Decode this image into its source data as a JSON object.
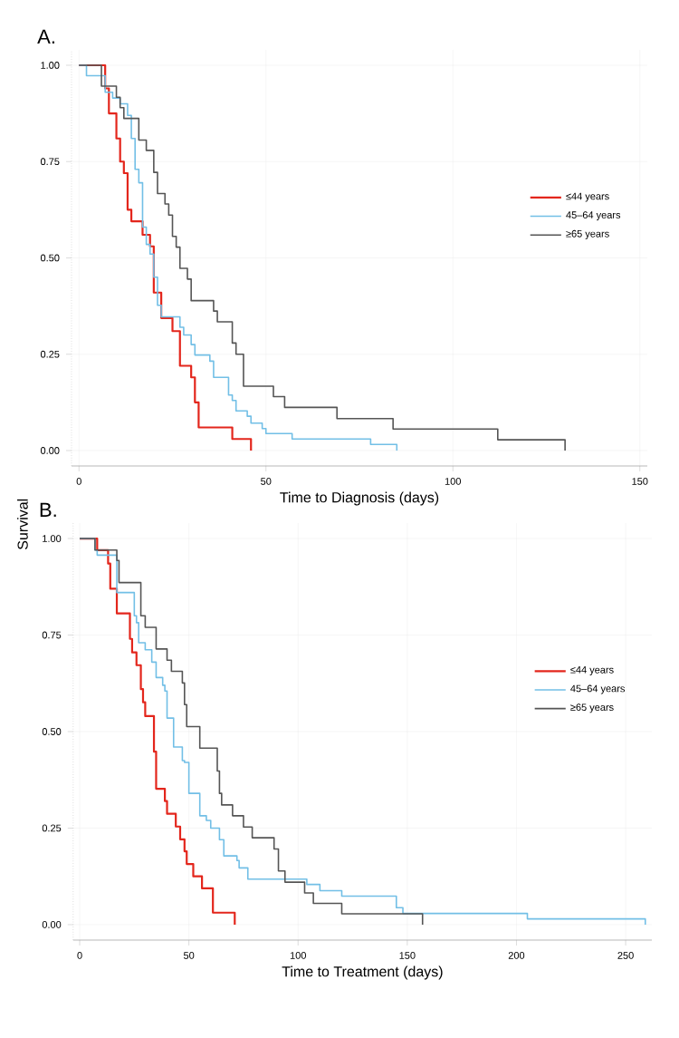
{
  "chart_data": [
    {
      "type": "step",
      "title": "A.",
      "xlabel": "Time to Diagnosis (days)",
      "ylabel": "Survival",
      "xlim": [
        -2,
        152
      ],
      "ylim": [
        -0.04,
        1.04
      ],
      "xticks": [
        0,
        50,
        100,
        150
      ],
      "yticks": [
        {
          "value": 0,
          "label": "0.00"
        },
        {
          "value": 0.25,
          "label": "0.25"
        },
        {
          "value": 0.5,
          "label": "0.50"
        },
        {
          "value": 0.75,
          "label": "0.75"
        },
        {
          "value": 1,
          "label": "1.00"
        }
      ],
      "grid": true,
      "legend": "right",
      "series": [
        {
          "name": "≤44 years",
          "color": "#e3261c",
          "x": [
            0,
            7,
            8,
            10,
            11,
            12,
            13,
            14,
            17,
            19,
            20,
            22,
            25,
            27,
            30,
            31,
            32,
            41,
            46
          ],
          "values": [
            1,
            0.94,
            0.875,
            0.81,
            0.75,
            0.72,
            0.625,
            0.595,
            0.56,
            0.53,
            0.41,
            0.344,
            0.31,
            0.22,
            0.19,
            0.125,
            0.06,
            0.03,
            0
          ]
        },
        {
          "name": "45–64 years",
          "color": "#72bfe6",
          "x": [
            0,
            2,
            7,
            9,
            11,
            13,
            14,
            15,
            16,
            17,
            18,
            19,
            20,
            21,
            22,
            27,
            28,
            30,
            31,
            35,
            36,
            40,
            41,
            42,
            45,
            46,
            49,
            50,
            57,
            78,
            85
          ],
          "values": [
            1,
            0.973,
            0.93,
            0.915,
            0.9,
            0.87,
            0.81,
            0.73,
            0.695,
            0.58,
            0.535,
            0.51,
            0.45,
            0.377,
            0.347,
            0.32,
            0.3,
            0.275,
            0.248,
            0.232,
            0.19,
            0.144,
            0.13,
            0.103,
            0.089,
            0.071,
            0.057,
            0.044,
            0.03,
            0.016,
            0
          ]
        },
        {
          "name": "≥65 years",
          "color": "#555555",
          "x": [
            0,
            6,
            10,
            11,
            12,
            16,
            18,
            20,
            21,
            23,
            24,
            25,
            26,
            27,
            29,
            30,
            36,
            37,
            41,
            42,
            44,
            52,
            55,
            69,
            84,
            112,
            130
          ],
          "values": [
            1,
            0.946,
            0.917,
            0.89,
            0.862,
            0.806,
            0.779,
            0.722,
            0.667,
            0.64,
            0.611,
            0.556,
            0.528,
            0.473,
            0.445,
            0.389,
            0.362,
            0.334,
            0.279,
            0.25,
            0.167,
            0.14,
            0.112,
            0.083,
            0.056,
            0.028,
            0
          ]
        }
      ]
    },
    {
      "type": "step",
      "title": "B.",
      "xlabel": "Time to Treatment (days)",
      "xlim": [
        -3,
        262
      ],
      "ylim": [
        -0.04,
        1.04
      ],
      "xticks": [
        0,
        50,
        100,
        150,
        200,
        250
      ],
      "yticks": [
        {
          "value": 0,
          "label": "0.00"
        },
        {
          "value": 0.25,
          "label": "0.25"
        },
        {
          "value": 0.5,
          "label": "0.50"
        },
        {
          "value": 0.75,
          "label": "0.75"
        },
        {
          "value": 1,
          "label": "1.00"
        }
      ],
      "grid": true,
      "legend": "right",
      "series": [
        {
          "name": "≤44 years",
          "color": "#e3261c",
          "x": [
            0,
            8,
            13,
            14,
            17,
            23,
            24,
            26,
            28,
            29,
            30,
            34,
            35,
            39,
            40,
            44,
            46,
            48,
            49,
            52,
            56,
            61,
            71
          ],
          "values": [
            1,
            0.97,
            0.935,
            0.87,
            0.806,
            0.74,
            0.705,
            0.672,
            0.61,
            0.576,
            0.54,
            0.448,
            0.352,
            0.32,
            0.287,
            0.254,
            0.221,
            0.19,
            0.157,
            0.125,
            0.094,
            0.031,
            0
          ]
        },
        {
          "name": "45–64 years",
          "color": "#72bfe6",
          "x": [
            0,
            7,
            8,
            17,
            25,
            26,
            27,
            30,
            33,
            35,
            38,
            39,
            40,
            43,
            47,
            48,
            50,
            55,
            58,
            60,
            64,
            66,
            72,
            73,
            77,
            104,
            110,
            120,
            145,
            148,
            205,
            259
          ],
          "values": [
            1,
            0.97,
            0.957,
            0.86,
            0.8,
            0.782,
            0.73,
            0.712,
            0.68,
            0.64,
            0.62,
            0.605,
            0.535,
            0.46,
            0.425,
            0.42,
            0.34,
            0.282,
            0.27,
            0.25,
            0.22,
            0.178,
            0.166,
            0.147,
            0.118,
            0.104,
            0.088,
            0.074,
            0.044,
            0.029,
            0.015,
            0
          ]
        },
        {
          "name": "≥65 years",
          "color": "#555555",
          "x": [
            0,
            7,
            17,
            18,
            28,
            30,
            35,
            40,
            42,
            47,
            48,
            49,
            55,
            63,
            64,
            65,
            70,
            75,
            79,
            89,
            91,
            94,
            103,
            107,
            120,
            157
          ],
          "values": [
            1,
            0.97,
            0.943,
            0.886,
            0.8,
            0.77,
            0.714,
            0.685,
            0.656,
            0.626,
            0.57,
            0.513,
            0.457,
            0.398,
            0.34,
            0.31,
            0.282,
            0.253,
            0.225,
            0.196,
            0.139,
            0.11,
            0.082,
            0.055,
            0.028,
            0
          ]
        }
      ]
    }
  ]
}
